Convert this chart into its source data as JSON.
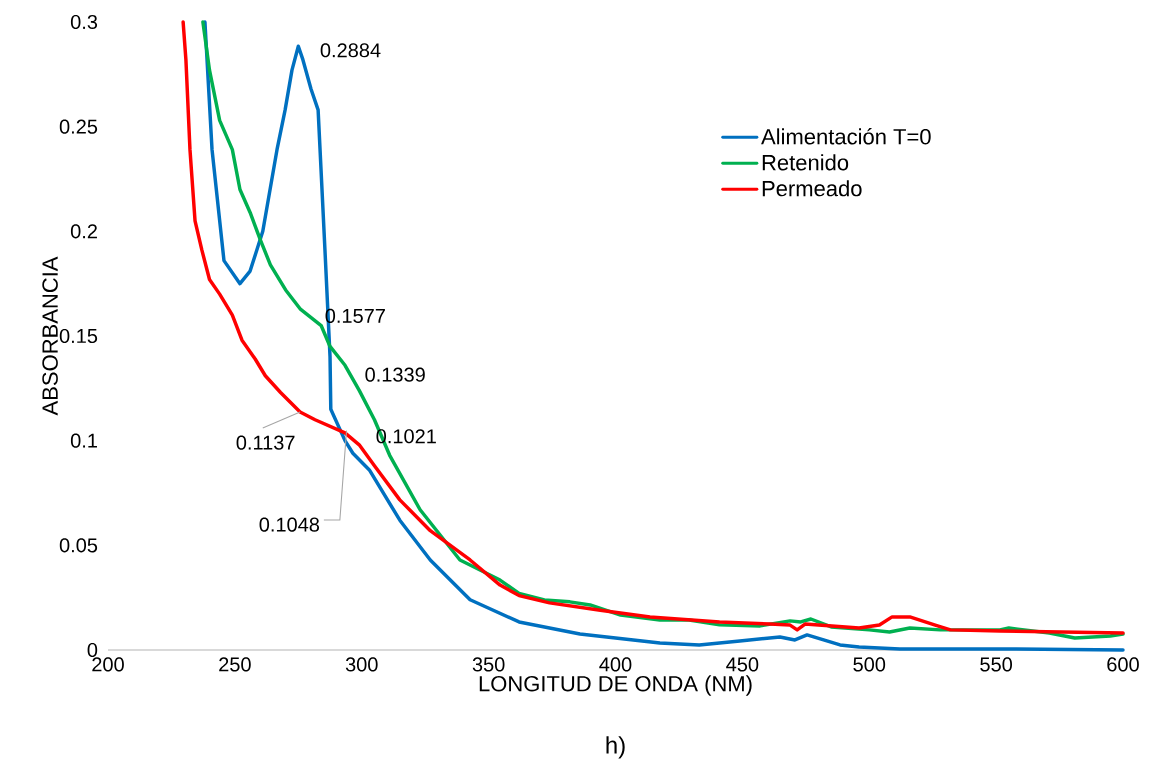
{
  "chart_data": {
    "type": "line",
    "xlabel": "LONGITUD DE ONDA (NM)",
    "ylabel": "ABSORBANCIA",
    "xlim": [
      200,
      600
    ],
    "xticks": [
      200,
      250,
      300,
      350,
      400,
      450,
      500,
      550,
      600
    ],
    "ylim": [
      0,
      0.3
    ],
    "yticks": [
      0,
      0.05,
      0.1,
      0.15,
      0.2,
      0.25,
      0.3
    ],
    "legend": "top right",
    "marker": "none",
    "line_style": "solid",
    "series": [
      {
        "name": "Alimentación T=0",
        "color": "#0070c0",
        "x": [
          238.2,
          241,
          245.7,
          252,
          256,
          261,
          266.6,
          269.8,
          272.5,
          275,
          276.8,
          280,
          282.8,
          285.5,
          287.5,
          287.8,
          293.4,
          296.5,
          303,
          315,
          327,
          342.7,
          362,
          386,
          417.5,
          433,
          449,
          464.8,
          470.7,
          475.5,
          488.5,
          496,
          512,
          551,
          600
        ],
        "values": [
          0.3,
          0.239,
          0.186,
          0.175,
          0.181,
          0.2,
          0.239,
          0.258,
          0.277,
          0.2884,
          0.282,
          0.268,
          0.258,
          0.191,
          0.14,
          0.115,
          0.1,
          0.094,
          0.086,
          0.062,
          0.043,
          0.024,
          0.0134,
          0.0076,
          0.0033,
          0.0024,
          0.0043,
          0.0062,
          0.0048,
          0.0072,
          0.0024,
          0.0014,
          0.0005,
          0.0005,
          0
        ]
      },
      {
        "name": "Retenido",
        "color": "#00b050",
        "x": [
          237.4,
          240,
          244,
          249,
          252,
          256,
          260,
          264,
          270,
          275.7,
          284,
          287.5,
          293.4,
          299,
          305,
          311,
          323,
          338.7,
          354.5,
          362,
          372,
          382,
          390,
          402,
          417.5,
          429,
          441,
          457,
          468.8,
          473,
          477,
          485,
          500,
          508,
          516,
          528,
          551.5,
          555,
          571,
          581,
          595,
          600
        ],
        "values": [
          0.3,
          0.277,
          0.253,
          0.239,
          0.22,
          0.209,
          0.196,
          0.184,
          0.172,
          0.163,
          0.155,
          0.145,
          0.136,
          0.124,
          0.11,
          0.093,
          0.067,
          0.043,
          0.0334,
          0.027,
          0.0239,
          0.023,
          0.0215,
          0.0167,
          0.0143,
          0.0143,
          0.012,
          0.0115,
          0.0139,
          0.0134,
          0.0148,
          0.011,
          0.0096,
          0.0086,
          0.0105,
          0.0096,
          0.0096,
          0.0105,
          0.0081,
          0.0057,
          0.0067,
          0.0076
        ]
      },
      {
        "name": "Permeado",
        "color": "#ff0000",
        "x": [
          229.6,
          230.7,
          232.3,
          234.3,
          237,
          240,
          244,
          249,
          252.8,
          258,
          262,
          268,
          275.7,
          281.6,
          293.4,
          299,
          305,
          315,
          327,
          342.7,
          354.5,
          362,
          374,
          394,
          413.6,
          441,
          460.9,
          468.8,
          471.6,
          474.7,
          496,
          504,
          509,
          516,
          526,
          532,
          551.5,
          600
        ],
        "values": [
          0.3,
          0.282,
          0.239,
          0.205,
          0.191,
          0.177,
          0.17,
          0.16,
          0.148,
          0.139,
          0.131,
          0.123,
          0.1137,
          0.11,
          0.1037,
          0.098,
          0.088,
          0.0717,
          0.057,
          0.043,
          0.031,
          0.026,
          0.0225,
          0.019,
          0.0158,
          0.0134,
          0.0124,
          0.0119,
          0.0096,
          0.0124,
          0.0105,
          0.0119,
          0.0158,
          0.0158,
          0.0119,
          0.0096,
          0.0091,
          0.0081
        ]
      }
    ],
    "annotations": [
      {
        "text": "0.2884",
        "x": 275,
        "y": 0.2884
      },
      {
        "text": "0.1577",
        "x": 284,
        "y": 0.1577
      },
      {
        "text": "0.1339",
        "x": 293.4,
        "y": 0.1339
      },
      {
        "text": "0.1137",
        "x": 275.7,
        "y": 0.1137
      },
      {
        "text": "0.1021",
        "x": 296.2,
        "y": 0.1021
      },
      {
        "text": "0.1048",
        "x": 294,
        "y": 0.1048
      },
      "h)"
    ]
  }
}
